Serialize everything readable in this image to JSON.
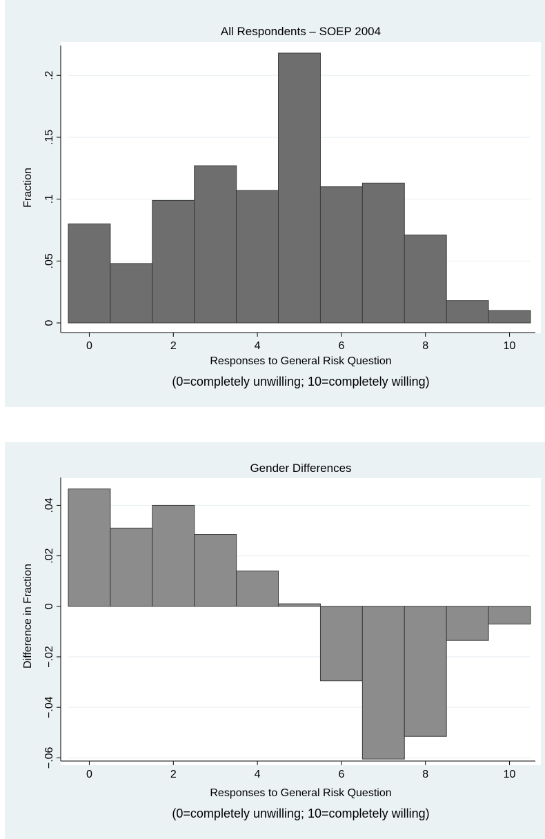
{
  "chart_data": [
    {
      "type": "bar",
      "title": "All Respondents – SOEP 2004",
      "xlabel": "Responses to General Risk Question",
      "xlabel_note": "(0=completely unwilling; 10=completely willing)",
      "ylabel": "Fraction",
      "categories": [
        0,
        1,
        2,
        3,
        4,
        5,
        6,
        7,
        8,
        9,
        10
      ],
      "values": [
        0.08,
        0.048,
        0.099,
        0.127,
        0.107,
        0.218,
        0.11,
        0.113,
        0.071,
        0.018,
        0.01
      ],
      "xticks": [
        0,
        2,
        4,
        6,
        8,
        10
      ],
      "xtick_labels": [
        "0",
        "2",
        "4",
        "6",
        "8",
        "10"
      ],
      "yticks": [
        0,
        0.05,
        0.1,
        0.15,
        0.2
      ],
      "ytick_labels": [
        "0",
        ".05",
        ".1",
        ".15",
        ".2"
      ],
      "xlim": [
        -0.5,
        10.5
      ],
      "ylim": [
        0,
        0.223
      ],
      "bar_color": "#6e6e6e",
      "grid": true
    },
    {
      "type": "bar",
      "title": "Gender Differences",
      "xlabel": "Responses to General Risk Question",
      "xlabel_note": "(0=completely unwilling; 10=completely willing)",
      "ylabel": "Difference in Fraction",
      "categories": [
        0,
        1,
        2,
        3,
        4,
        5,
        6,
        7,
        8,
        9,
        10
      ],
      "values": [
        0.0465,
        0.031,
        0.04,
        0.0285,
        0.014,
        0.001,
        -0.0295,
        -0.0605,
        -0.0515,
        -0.0135,
        -0.007
      ],
      "xticks": [
        0,
        2,
        4,
        6,
        8,
        10
      ],
      "xtick_labels": [
        "0",
        "2",
        "4",
        "6",
        "8",
        "10"
      ],
      "yticks": [
        -0.06,
        -0.04,
        -0.02,
        0,
        0.02,
        0.04
      ],
      "ytick_labels": [
        "−.06",
        "−.04",
        "−.02",
        "0",
        ".02",
        ".04"
      ],
      "xlim": [
        -0.5,
        10.5
      ],
      "ylim": [
        -0.061,
        0.0505
      ],
      "bar_color": "#8c8c8c",
      "grid": true
    }
  ]
}
